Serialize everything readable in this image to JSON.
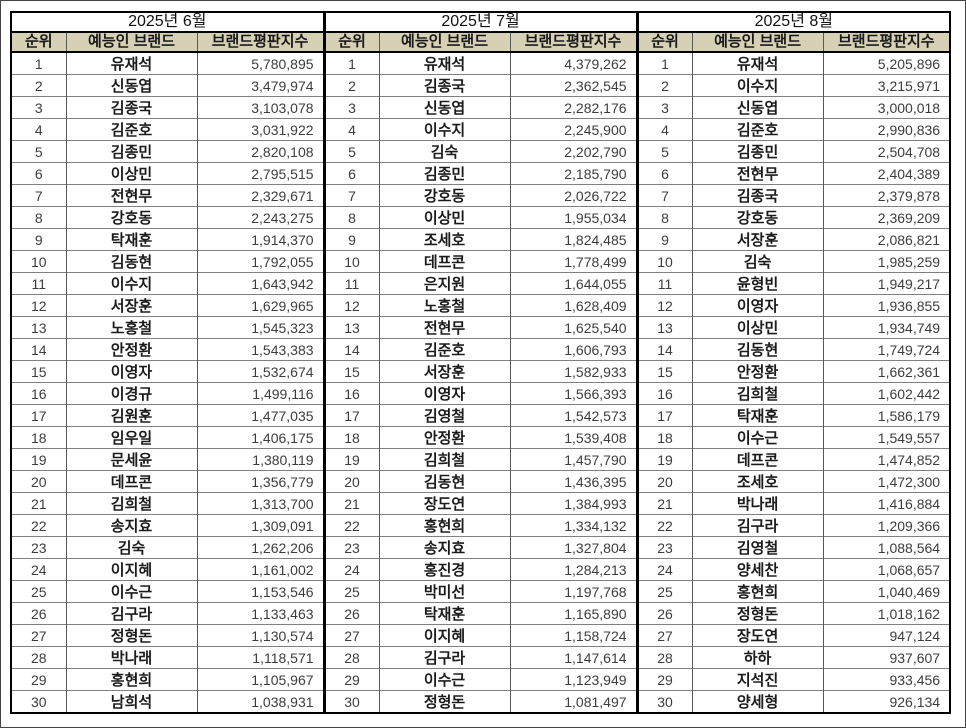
{
  "months": [
    {
      "title": "2025년 6월",
      "columns": [
        "순위",
        "예능인 브랜드",
        "브랜드평판지수"
      ],
      "rows": [
        [
          "1",
          "유재석",
          "5,780,895"
        ],
        [
          "2",
          "신동엽",
          "3,479,974"
        ],
        [
          "3",
          "김종국",
          "3,103,078"
        ],
        [
          "4",
          "김준호",
          "3,031,922"
        ],
        [
          "5",
          "김종민",
          "2,820,108"
        ],
        [
          "6",
          "이상민",
          "2,795,515"
        ],
        [
          "7",
          "전현무",
          "2,329,671"
        ],
        [
          "8",
          "강호동",
          "2,243,275"
        ],
        [
          "9",
          "탁재훈",
          "1,914,370"
        ],
        [
          "10",
          "김동현",
          "1,792,055"
        ],
        [
          "11",
          "이수지",
          "1,643,942"
        ],
        [
          "12",
          "서장훈",
          "1,629,965"
        ],
        [
          "13",
          "노홍철",
          "1,545,323"
        ],
        [
          "14",
          "안정환",
          "1,543,383"
        ],
        [
          "15",
          "이영자",
          "1,532,674"
        ],
        [
          "16",
          "이경규",
          "1,499,116"
        ],
        [
          "17",
          "김원훈",
          "1,477,035"
        ],
        [
          "18",
          "임우일",
          "1,406,175"
        ],
        [
          "19",
          "문세윤",
          "1,380,119"
        ],
        [
          "20",
          "데프콘",
          "1,356,779"
        ],
        [
          "21",
          "김희철",
          "1,313,700"
        ],
        [
          "22",
          "송지효",
          "1,309,091"
        ],
        [
          "23",
          "김숙",
          "1,262,206"
        ],
        [
          "24",
          "이지혜",
          "1,161,002"
        ],
        [
          "25",
          "이수근",
          "1,153,546"
        ],
        [
          "26",
          "김구라",
          "1,133,463"
        ],
        [
          "27",
          "정형돈",
          "1,130,574"
        ],
        [
          "28",
          "박나래",
          "1,118,571"
        ],
        [
          "29",
          "홍현희",
          "1,105,967"
        ],
        [
          "30",
          "남희석",
          "1,038,931"
        ]
      ]
    },
    {
      "title": "2025년 7월",
      "columns": [
        "순위",
        "예능인 브랜드",
        "브랜드평판지수"
      ],
      "rows": [
        [
          "1",
          "유재석",
          "4,379,262"
        ],
        [
          "2",
          "김종국",
          "2,362,545"
        ],
        [
          "3",
          "신동엽",
          "2,282,176"
        ],
        [
          "4",
          "이수지",
          "2,245,900"
        ],
        [
          "5",
          "김숙",
          "2,202,790"
        ],
        [
          "6",
          "김종민",
          "2,185,790"
        ],
        [
          "7",
          "강호동",
          "2,026,722"
        ],
        [
          "8",
          "이상민",
          "1,955,034"
        ],
        [
          "9",
          "조세호",
          "1,824,485"
        ],
        [
          "10",
          "데프콘",
          "1,778,499"
        ],
        [
          "11",
          "은지원",
          "1,644,055"
        ],
        [
          "12",
          "노홍철",
          "1,628,409"
        ],
        [
          "13",
          "전현무",
          "1,625,540"
        ],
        [
          "14",
          "김준호",
          "1,606,793"
        ],
        [
          "15",
          "서장훈",
          "1,582,933"
        ],
        [
          "16",
          "이영자",
          "1,566,393"
        ],
        [
          "17",
          "김영철",
          "1,542,573"
        ],
        [
          "18",
          "안정환",
          "1,539,408"
        ],
        [
          "19",
          "김희철",
          "1,457,790"
        ],
        [
          "20",
          "김동현",
          "1,436,395"
        ],
        [
          "21",
          "장도연",
          "1,384,993"
        ],
        [
          "22",
          "홍현희",
          "1,334,132"
        ],
        [
          "23",
          "송지효",
          "1,327,804"
        ],
        [
          "24",
          "홍진경",
          "1,284,213"
        ],
        [
          "25",
          "박미선",
          "1,197,768"
        ],
        [
          "26",
          "탁재훈",
          "1,165,890"
        ],
        [
          "27",
          "이지혜",
          "1,158,724"
        ],
        [
          "28",
          "김구라",
          "1,147,614"
        ],
        [
          "29",
          "이수근",
          "1,123,949"
        ],
        [
          "30",
          "정형돈",
          "1,081,497"
        ]
      ]
    },
    {
      "title": "2025년 8월",
      "columns": [
        "순위",
        "예능인 브랜드",
        "브랜드평판지수"
      ],
      "rows": [
        [
          "1",
          "유재석",
          "5,205,896"
        ],
        [
          "2",
          "이수지",
          "3,215,971"
        ],
        [
          "3",
          "신동엽",
          "3,000,018"
        ],
        [
          "4",
          "김준호",
          "2,990,836"
        ],
        [
          "5",
          "김종민",
          "2,504,708"
        ],
        [
          "6",
          "전현무",
          "2,404,389"
        ],
        [
          "7",
          "김종국",
          "2,379,878"
        ],
        [
          "8",
          "강호동",
          "2,369,209"
        ],
        [
          "9",
          "서장훈",
          "2,086,821"
        ],
        [
          "10",
          "김숙",
          "1,985,259"
        ],
        [
          "11",
          "윤형빈",
          "1,949,217"
        ],
        [
          "12",
          "이영자",
          "1,936,855"
        ],
        [
          "13",
          "이상민",
          "1,934,749"
        ],
        [
          "14",
          "김동현",
          "1,749,724"
        ],
        [
          "15",
          "안정환",
          "1,662,361"
        ],
        [
          "16",
          "김희철",
          "1,602,442"
        ],
        [
          "17",
          "탁재훈",
          "1,586,179"
        ],
        [
          "18",
          "이수근",
          "1,549,557"
        ],
        [
          "19",
          "데프콘",
          "1,474,852"
        ],
        [
          "20",
          "조세호",
          "1,472,300"
        ],
        [
          "21",
          "박나래",
          "1,416,884"
        ],
        [
          "22",
          "김구라",
          "1,209,366"
        ],
        [
          "23",
          "김영철",
          "1,088,564"
        ],
        [
          "24",
          "양세찬",
          "1,068,657"
        ],
        [
          "25",
          "홍현희",
          "1,040,469"
        ],
        [
          "26",
          "정형돈",
          "1,018,162"
        ],
        [
          "27",
          "장도연",
          "947,124"
        ],
        [
          "28",
          "하하",
          "937,607"
        ],
        [
          "29",
          "지석진",
          "933,456"
        ],
        [
          "30",
          "양세형",
          "926,134"
        ]
      ]
    }
  ],
  "style": {
    "header_fill": "#d6d0b4",
    "outer_border": "#000000",
    "row_line": "#808080"
  }
}
